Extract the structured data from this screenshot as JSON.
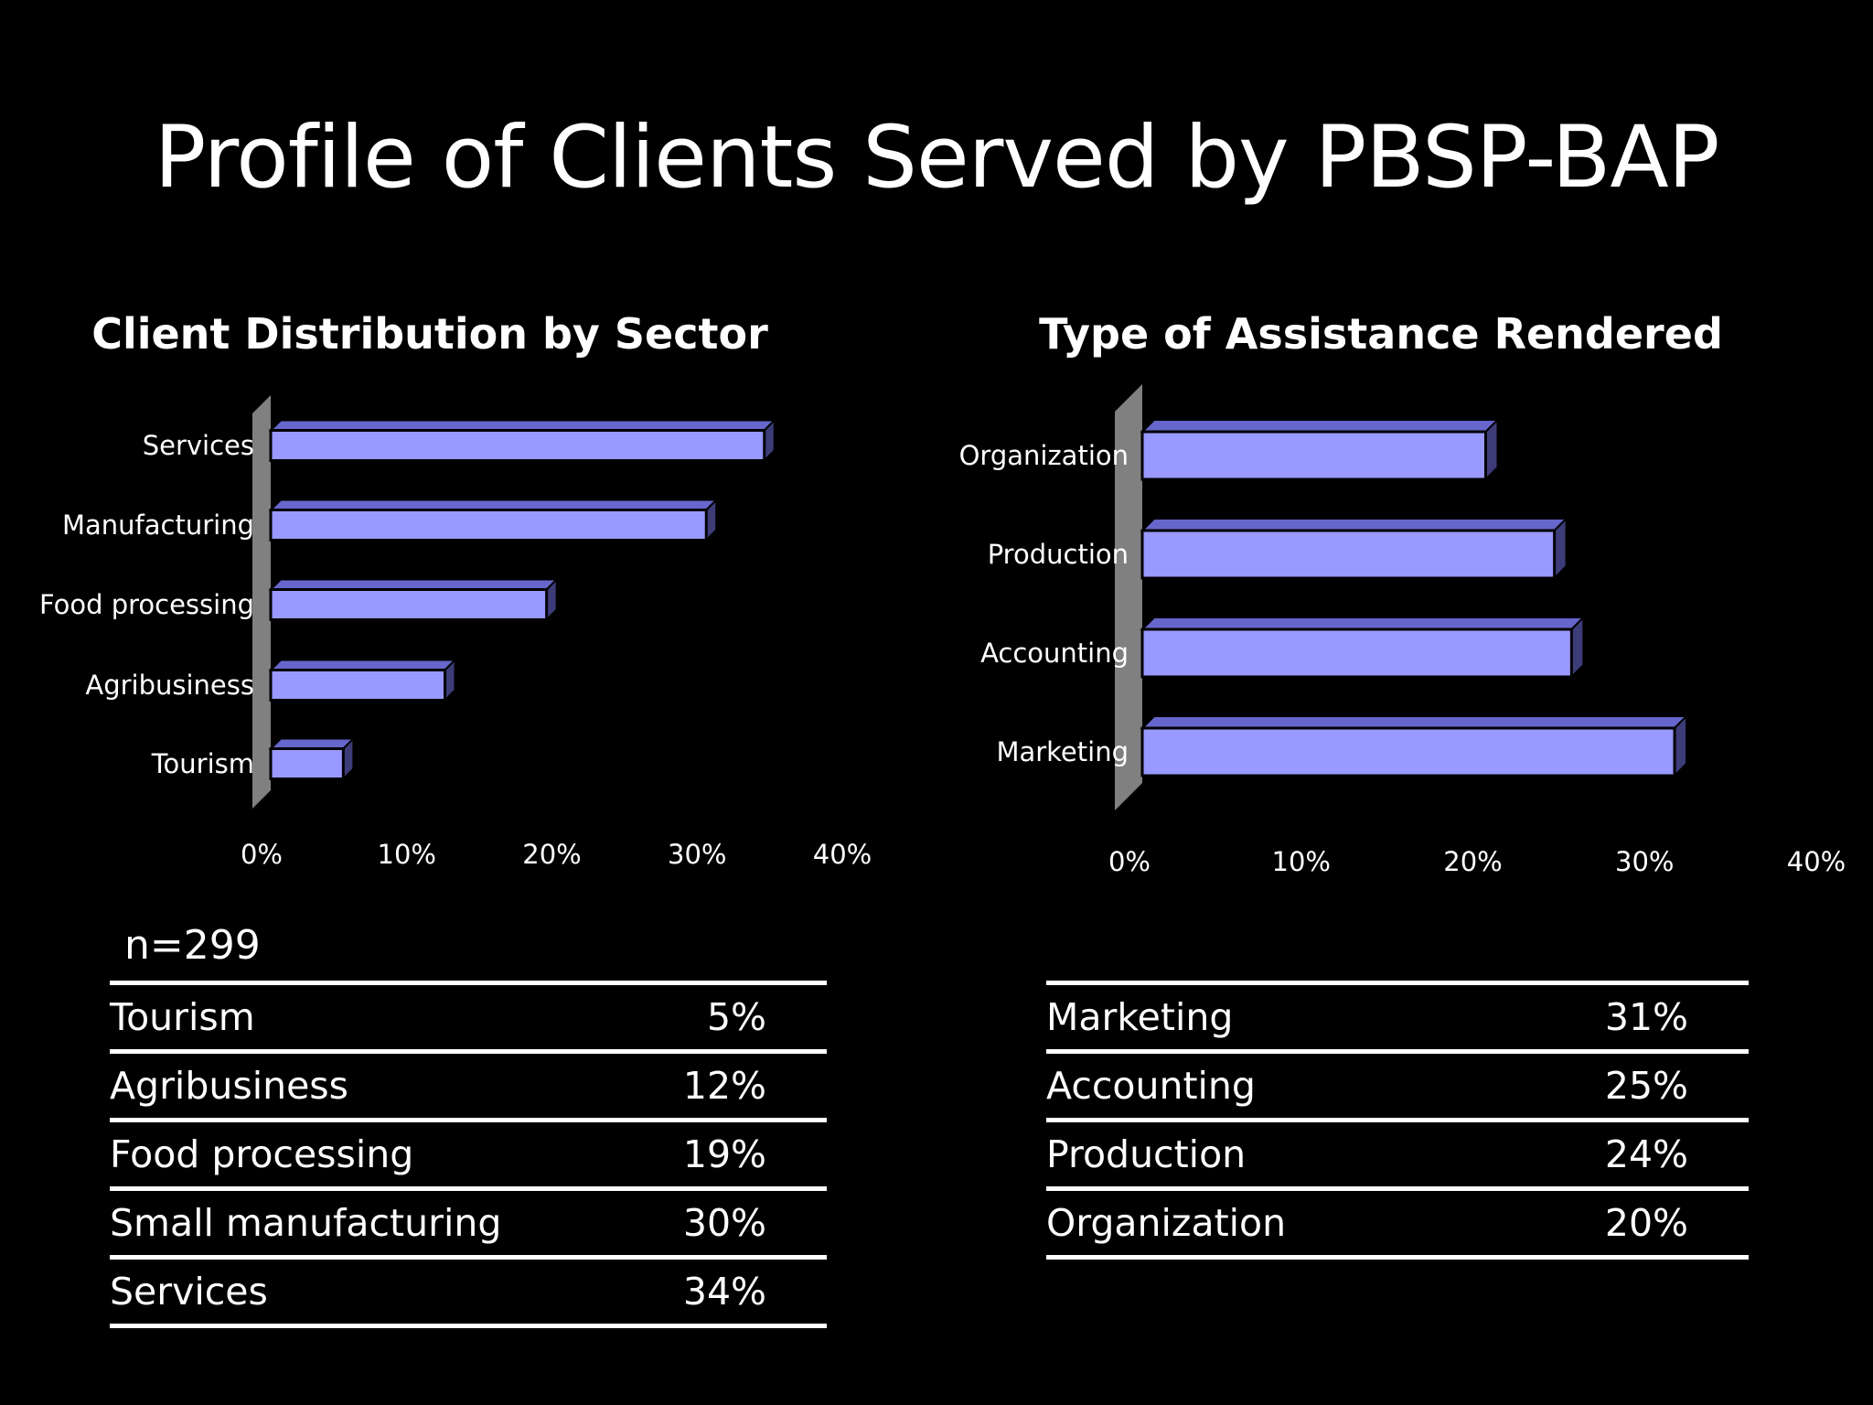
{
  "title": "Profile of Clients Served by PBSP-BAP",
  "colors": {
    "bar_front": "#9999ff",
    "bar_top": "#6666cc",
    "bar_side": "#3c3c78",
    "wall": "#808080",
    "background": "#000000"
  },
  "chart_data": [
    {
      "type": "bar",
      "orientation": "horizontal",
      "title": "Client Distribution by Sector",
      "categories": [
        "Services",
        "Manufacturing",
        "Food processing",
        "Agribusiness",
        "Tourism"
      ],
      "values": [
        34,
        30,
        19,
        12,
        5
      ],
      "xlim": [
        0,
        40
      ],
      "xticks": [
        "0%",
        "10%",
        "20%",
        "30%",
        "40%"
      ],
      "grid": false,
      "legend": "none"
    },
    {
      "type": "bar",
      "orientation": "horizontal",
      "title": "Type of Assistance Rendered",
      "categories": [
        "Organization",
        "Production",
        "Accounting",
        "Marketing"
      ],
      "values": [
        20,
        24,
        25,
        31
      ],
      "xlim": [
        0,
        40
      ],
      "xticks": [
        "0%",
        "10%",
        "20%",
        "30%",
        "40%"
      ],
      "grid": false,
      "legend": "none"
    }
  ],
  "sample_size": "n=299",
  "sector_table": [
    {
      "label": "Tourism",
      "value": "5%"
    },
    {
      "label": "Agribusiness",
      "value": "12%"
    },
    {
      "label": "Food processing",
      "value": "19%"
    },
    {
      "label": "Small manufacturing",
      "value": "30%"
    },
    {
      "label": "Services",
      "value": "34%"
    }
  ],
  "assistance_table": [
    {
      "label": "Marketing",
      "value": "31%"
    },
    {
      "label": "Accounting",
      "value": "25%"
    },
    {
      "label": "Production",
      "value": "24%"
    },
    {
      "label": "Organization",
      "value": "20%"
    }
  ]
}
